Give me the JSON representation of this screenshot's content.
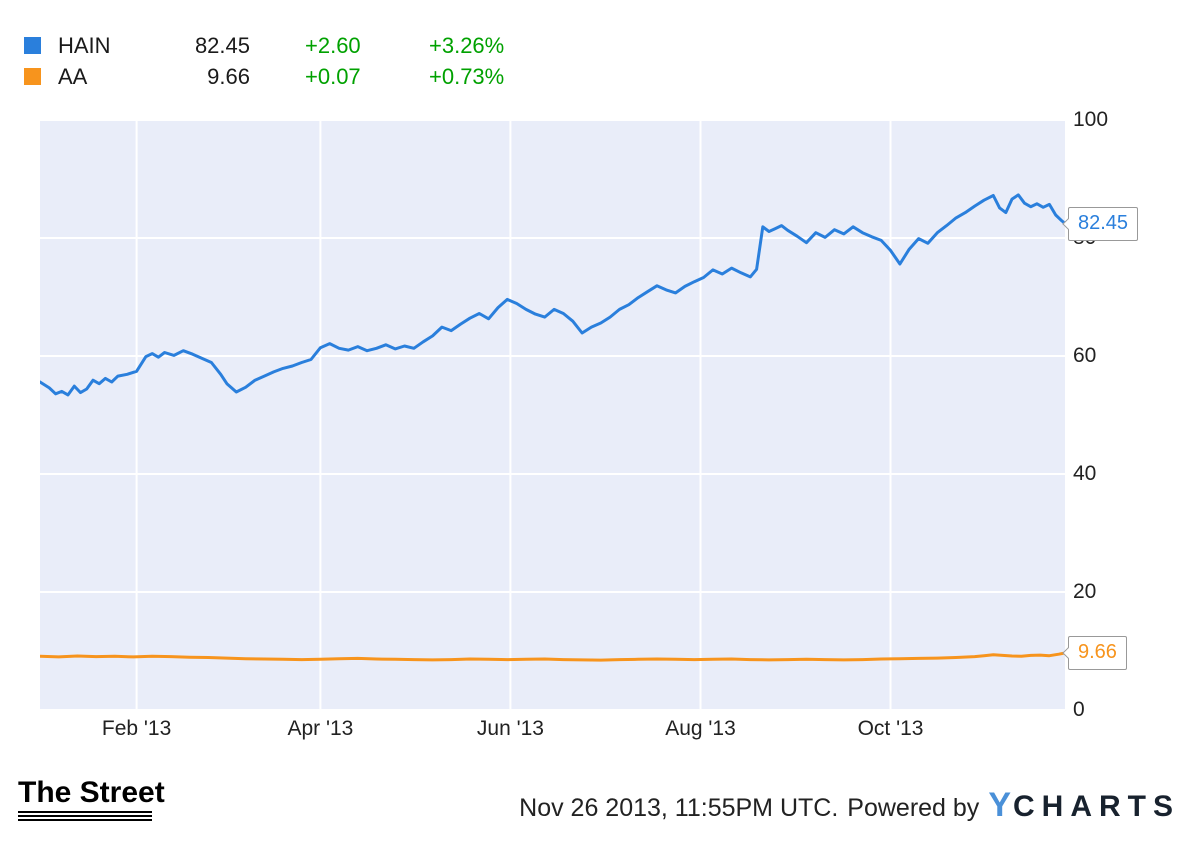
{
  "legend": {
    "change_color": "#00a100",
    "items": [
      {
        "symbol": "HAIN",
        "value": "82.45",
        "change": "+2.60",
        "change_pct": "+3.26%",
        "color": "#2a7fdc"
      },
      {
        "symbol": "AA",
        "value": "9.66",
        "change": "+0.07",
        "change_pct": "+0.73%",
        "color": "#f7941d"
      }
    ]
  },
  "chart_data": {
    "type": "line",
    "title": "",
    "xlabel": "",
    "ylabel": "",
    "ylim": [
      0,
      100
    ],
    "y_ticks": [
      0,
      20,
      40,
      60,
      80,
      100
    ],
    "grid": true,
    "grid_color": "#ffffff",
    "plot_bg": "#e9edf9",
    "legend_position": "top-left-outside",
    "x_axis": {
      "start_day": 0,
      "end_day": 329,
      "ticks": [
        {
          "day": 31,
          "label": "Feb '13"
        },
        {
          "day": 90,
          "label": "Apr '13"
        },
        {
          "day": 151,
          "label": "Jun '13"
        },
        {
          "day": 212,
          "label": "Aug '13"
        },
        {
          "day": 273,
          "label": "Oct '13"
        }
      ]
    },
    "series": [
      {
        "name": "HAIN",
        "color": "#2a7fdc",
        "end_label": "82.45",
        "points": [
          [
            0,
            55.6
          ],
          [
            3,
            54.6
          ],
          [
            5,
            53.6
          ],
          [
            7,
            54.0
          ],
          [
            9,
            53.4
          ],
          [
            11,
            54.9
          ],
          [
            13,
            53.8
          ],
          [
            15,
            54.4
          ],
          [
            17,
            55.9
          ],
          [
            19,
            55.3
          ],
          [
            21,
            56.2
          ],
          [
            23,
            55.6
          ],
          [
            25,
            56.6
          ],
          [
            28,
            56.9
          ],
          [
            31,
            57.4
          ],
          [
            34,
            59.9
          ],
          [
            36,
            60.4
          ],
          [
            38,
            59.8
          ],
          [
            40,
            60.6
          ],
          [
            43,
            60.1
          ],
          [
            46,
            60.9
          ],
          [
            49,
            60.3
          ],
          [
            52,
            59.6
          ],
          [
            55,
            58.9
          ],
          [
            58,
            56.9
          ],
          [
            60,
            55.3
          ],
          [
            63,
            53.9
          ],
          [
            66,
            54.7
          ],
          [
            69,
            55.9
          ],
          [
            72,
            56.6
          ],
          [
            75,
            57.3
          ],
          [
            78,
            57.9
          ],
          [
            81,
            58.3
          ],
          [
            84,
            58.9
          ],
          [
            87,
            59.4
          ],
          [
            90,
            61.4
          ],
          [
            93,
            62.1
          ],
          [
            96,
            61.3
          ],
          [
            99,
            61.0
          ],
          [
            102,
            61.6
          ],
          [
            105,
            60.9
          ],
          [
            108,
            61.3
          ],
          [
            111,
            61.9
          ],
          [
            114,
            61.2
          ],
          [
            117,
            61.7
          ],
          [
            120,
            61.3
          ],
          [
            123,
            62.4
          ],
          [
            126,
            63.4
          ],
          [
            129,
            64.9
          ],
          [
            132,
            64.3
          ],
          [
            135,
            65.4
          ],
          [
            138,
            66.4
          ],
          [
            141,
            67.2
          ],
          [
            144,
            66.3
          ],
          [
            147,
            68.2
          ],
          [
            150,
            69.6
          ],
          [
            153,
            68.9
          ],
          [
            156,
            67.9
          ],
          [
            159,
            67.1
          ],
          [
            162,
            66.6
          ],
          [
            165,
            67.9
          ],
          [
            168,
            67.2
          ],
          [
            171,
            65.9
          ],
          [
            174,
            63.9
          ],
          [
            177,
            64.9
          ],
          [
            180,
            65.6
          ],
          [
            183,
            66.6
          ],
          [
            186,
            67.9
          ],
          [
            189,
            68.7
          ],
          [
            192,
            69.9
          ],
          [
            195,
            70.9
          ],
          [
            198,
            71.9
          ],
          [
            201,
            71.2
          ],
          [
            204,
            70.7
          ],
          [
            207,
            71.8
          ],
          [
            210,
            72.6
          ],
          [
            213,
            73.3
          ],
          [
            216,
            74.6
          ],
          [
            219,
            73.9
          ],
          [
            222,
            74.9
          ],
          [
            225,
            74.1
          ],
          [
            228,
            73.4
          ],
          [
            230,
            74.7
          ],
          [
            232,
            81.9
          ],
          [
            234,
            81.1
          ],
          [
            236,
            81.6
          ],
          [
            238,
            82.1
          ],
          [
            240,
            81.3
          ],
          [
            243,
            80.3
          ],
          [
            246,
            79.2
          ],
          [
            249,
            80.9
          ],
          [
            252,
            80.1
          ],
          [
            255,
            81.4
          ],
          [
            258,
            80.7
          ],
          [
            261,
            81.9
          ],
          [
            264,
            80.9
          ],
          [
            267,
            80.2
          ],
          [
            270,
            79.6
          ],
          [
            273,
            77.9
          ],
          [
            276,
            75.6
          ],
          [
            279,
            78.1
          ],
          [
            282,
            79.9
          ],
          [
            285,
            79.1
          ],
          [
            288,
            80.9
          ],
          [
            291,
            82.1
          ],
          [
            294,
            83.4
          ],
          [
            297,
            84.3
          ],
          [
            300,
            85.4
          ],
          [
            303,
            86.4
          ],
          [
            306,
            87.2
          ],
          [
            308,
            85.1
          ],
          [
            310,
            84.3
          ],
          [
            312,
            86.6
          ],
          [
            314,
            87.3
          ],
          [
            316,
            85.9
          ],
          [
            318,
            85.3
          ],
          [
            320,
            85.8
          ],
          [
            322,
            85.2
          ],
          [
            324,
            85.7
          ],
          [
            326,
            83.9
          ],
          [
            328,
            82.9
          ],
          [
            329,
            82.45
          ]
        ]
      },
      {
        "name": "AA",
        "color": "#f7941d",
        "end_label": "9.66",
        "points": [
          [
            0,
            9.1
          ],
          [
            6,
            9.0
          ],
          [
            12,
            9.15
          ],
          [
            18,
            9.05
          ],
          [
            24,
            9.1
          ],
          [
            30,
            9.0
          ],
          [
            36,
            9.1
          ],
          [
            42,
            9.05
          ],
          [
            48,
            8.95
          ],
          [
            54,
            8.9
          ],
          [
            60,
            8.8
          ],
          [
            66,
            8.7
          ],
          [
            72,
            8.65
          ],
          [
            78,
            8.6
          ],
          [
            84,
            8.55
          ],
          [
            90,
            8.6
          ],
          [
            96,
            8.7
          ],
          [
            102,
            8.75
          ],
          [
            108,
            8.65
          ],
          [
            114,
            8.6
          ],
          [
            120,
            8.55
          ],
          [
            126,
            8.5
          ],
          [
            132,
            8.55
          ],
          [
            138,
            8.65
          ],
          [
            144,
            8.6
          ],
          [
            150,
            8.55
          ],
          [
            156,
            8.6
          ],
          [
            162,
            8.65
          ],
          [
            168,
            8.55
          ],
          [
            174,
            8.5
          ],
          [
            180,
            8.45
          ],
          [
            186,
            8.55
          ],
          [
            192,
            8.6
          ],
          [
            198,
            8.65
          ],
          [
            204,
            8.6
          ],
          [
            210,
            8.55
          ],
          [
            216,
            8.6
          ],
          [
            222,
            8.65
          ],
          [
            228,
            8.55
          ],
          [
            234,
            8.5
          ],
          [
            240,
            8.55
          ],
          [
            246,
            8.6
          ],
          [
            252,
            8.55
          ],
          [
            258,
            8.5
          ],
          [
            264,
            8.55
          ],
          [
            270,
            8.65
          ],
          [
            276,
            8.7
          ],
          [
            282,
            8.75
          ],
          [
            288,
            8.8
          ],
          [
            294,
            8.9
          ],
          [
            300,
            9.05
          ],
          [
            303,
            9.2
          ],
          [
            306,
            9.35
          ],
          [
            309,
            9.25
          ],
          [
            312,
            9.15
          ],
          [
            315,
            9.1
          ],
          [
            318,
            9.25
          ],
          [
            321,
            9.3
          ],
          [
            324,
            9.2
          ],
          [
            327,
            9.45
          ],
          [
            329,
            9.66
          ]
        ]
      }
    ]
  },
  "footer": {
    "brand": "The Street",
    "timestamp": "Nov 26 2013, 11:55PM UTC.",
    "powered_by": "Powered by",
    "ycharts_y": "Y",
    "ycharts_rest": "CHARTS"
  }
}
